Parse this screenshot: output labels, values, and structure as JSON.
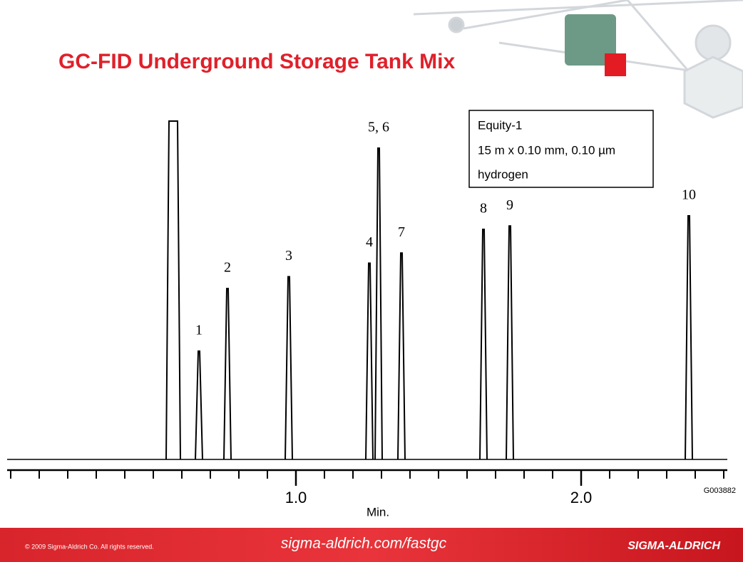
{
  "chart_data": {
    "type": "peaks",
    "title": "GC-FID Underground Storage Tank Mix",
    "x_label": "Min.",
    "x": [
      0.57,
      0.66,
      0.76,
      0.975,
      1.2575,
      1.29,
      1.37,
      1.6575,
      1.75,
      2.3775
    ],
    "values": [
      100,
      32,
      50.5,
      54,
      58,
      92,
      61,
      68,
      69,
      72
    ],
    "labels": [
      null,
      "1",
      "2",
      "3",
      "4",
      "5, 6",
      "7",
      "8",
      "9",
      "10"
    ],
    "color": "#000000",
    "xlim": [
      -0.0125,
      2.5125
    ],
    "ylim": [
      0,
      100
    ],
    "xticks": [
      {
        "value": 1,
        "label": "1.0"
      },
      {
        "value": 2,
        "label": "2.0"
      }
    ],
    "xminorticks": [
      0,
      0.1,
      0.2,
      0.3,
      0.4,
      0.5,
      0.6,
      0.7,
      0.8,
      0.9,
      1.1,
      1.2,
      1.3,
      1.4,
      1.5,
      1.6,
      1.7,
      1.8,
      1.9,
      2.1,
      2.2,
      2.3,
      2.4,
      2.5
    ],
    "legend_box": [
      "Equity-1",
      "15 m x 0.10 mm, 0.10 µm",
      "hydrogen"
    ],
    "code": "G003882"
  },
  "footer": {
    "copyright": "© 2009 Sigma-Aldrich Co. All rights reserved.",
    "url": "sigma-aldrich.com/fastgc",
    "brand": "SIGMA-ALDRICH"
  }
}
